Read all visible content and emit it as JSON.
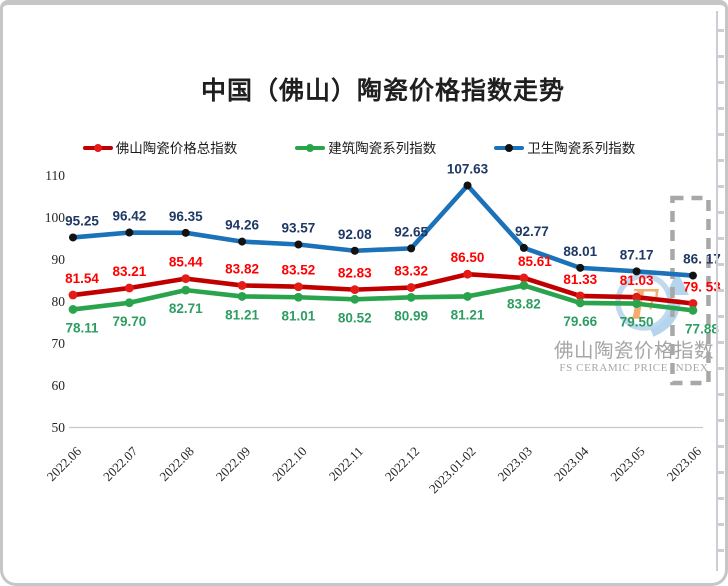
{
  "header": {
    "title": "中国（佛山）陶瓷价格指数走势"
  },
  "legend": [
    {
      "label": "佛山陶瓷价格总指数",
      "line_color": "#c00000",
      "marker_color": "#e41b17"
    },
    {
      "label": "建筑陶瓷系列指数",
      "line_color": "#2aa44c",
      "marker_color": "#2aa44c"
    },
    {
      "label": "卫生陶瓷系列指数",
      "line_color": "#1b72b8",
      "marker_color": "#121212"
    }
  ],
  "watermark": {
    "logo_letter": "F",
    "cn_text": "佛山陶瓷价格指数",
    "en_text": "FS CERAMIC PRICE INDEX",
    "ring_color": "#b9d5ed",
    "arrow_color": "#aed0ec",
    "letter_color": "#f2a660",
    "text_color": "#9c9c9c"
  },
  "chart_data": {
    "type": "line",
    "title": "中国（佛山）陶瓷价格指数走势",
    "categories": [
      "2022.06",
      "2022.07",
      "2022.08",
      "2022.09",
      "2022.10",
      "2022.11",
      "2022.12",
      "2023.01-02",
      "2023.03",
      "2023.04",
      "2023.05",
      "2023.06"
    ],
    "series": [
      {
        "name": "佛山陶瓷价格总指数",
        "color": "#c00000",
        "marker_color": "#e41b17",
        "label_color": "#fe0000",
        "label_position": "above",
        "values": [
          81.54,
          83.21,
          85.44,
          83.82,
          83.52,
          82.83,
          83.32,
          86.5,
          85.61,
          81.33,
          81.03,
          79.53
        ],
        "labels": [
          "81.54",
          "83.21",
          "85.44",
          "83.82",
          "83.52",
          "82.83",
          "83.32",
          "86.50",
          "85.61",
          "81.33",
          "81.03",
          "79. 53"
        ]
      },
      {
        "name": "建筑陶瓷系列指数",
        "color": "#2aa44c",
        "marker_color": "#2aa44c",
        "label_color": "#2e9d62",
        "label_position": "below",
        "values": [
          78.11,
          79.7,
          82.71,
          81.21,
          81.01,
          80.52,
          80.99,
          81.21,
          83.82,
          79.66,
          79.5,
          77.88
        ],
        "labels": [
          "78.11",
          "79.70",
          "82.71",
          "81.21",
          "81.01",
          "80.52",
          "80.99",
          "81.21",
          "83.82",
          "79.66",
          "79.50",
          "77.88"
        ]
      },
      {
        "name": "卫生陶瓷系列指数",
        "color": "#1b72b8",
        "marker_color": "#121212",
        "label_color": "#1f3864",
        "label_position": "above",
        "values": [
          95.25,
          96.42,
          96.35,
          94.26,
          93.57,
          92.08,
          92.65,
          107.63,
          92.77,
          88.01,
          87.17,
          86.17
        ],
        "labels": [
          "95.25",
          "96.42",
          "96.35",
          "94.26",
          "93.57",
          "92.08",
          "92.65",
          "107.63",
          "92.77",
          "88.01",
          "87.17",
          "86. 17"
        ]
      }
    ],
    "ylim": [
      50,
      110
    ],
    "yticks": [
      110,
      100,
      90,
      80,
      70,
      60,
      50
    ],
    "grid": "baseline-only",
    "legend_position": "top",
    "highlight": {
      "category": "2023.06",
      "style": "dashed-box"
    }
  }
}
